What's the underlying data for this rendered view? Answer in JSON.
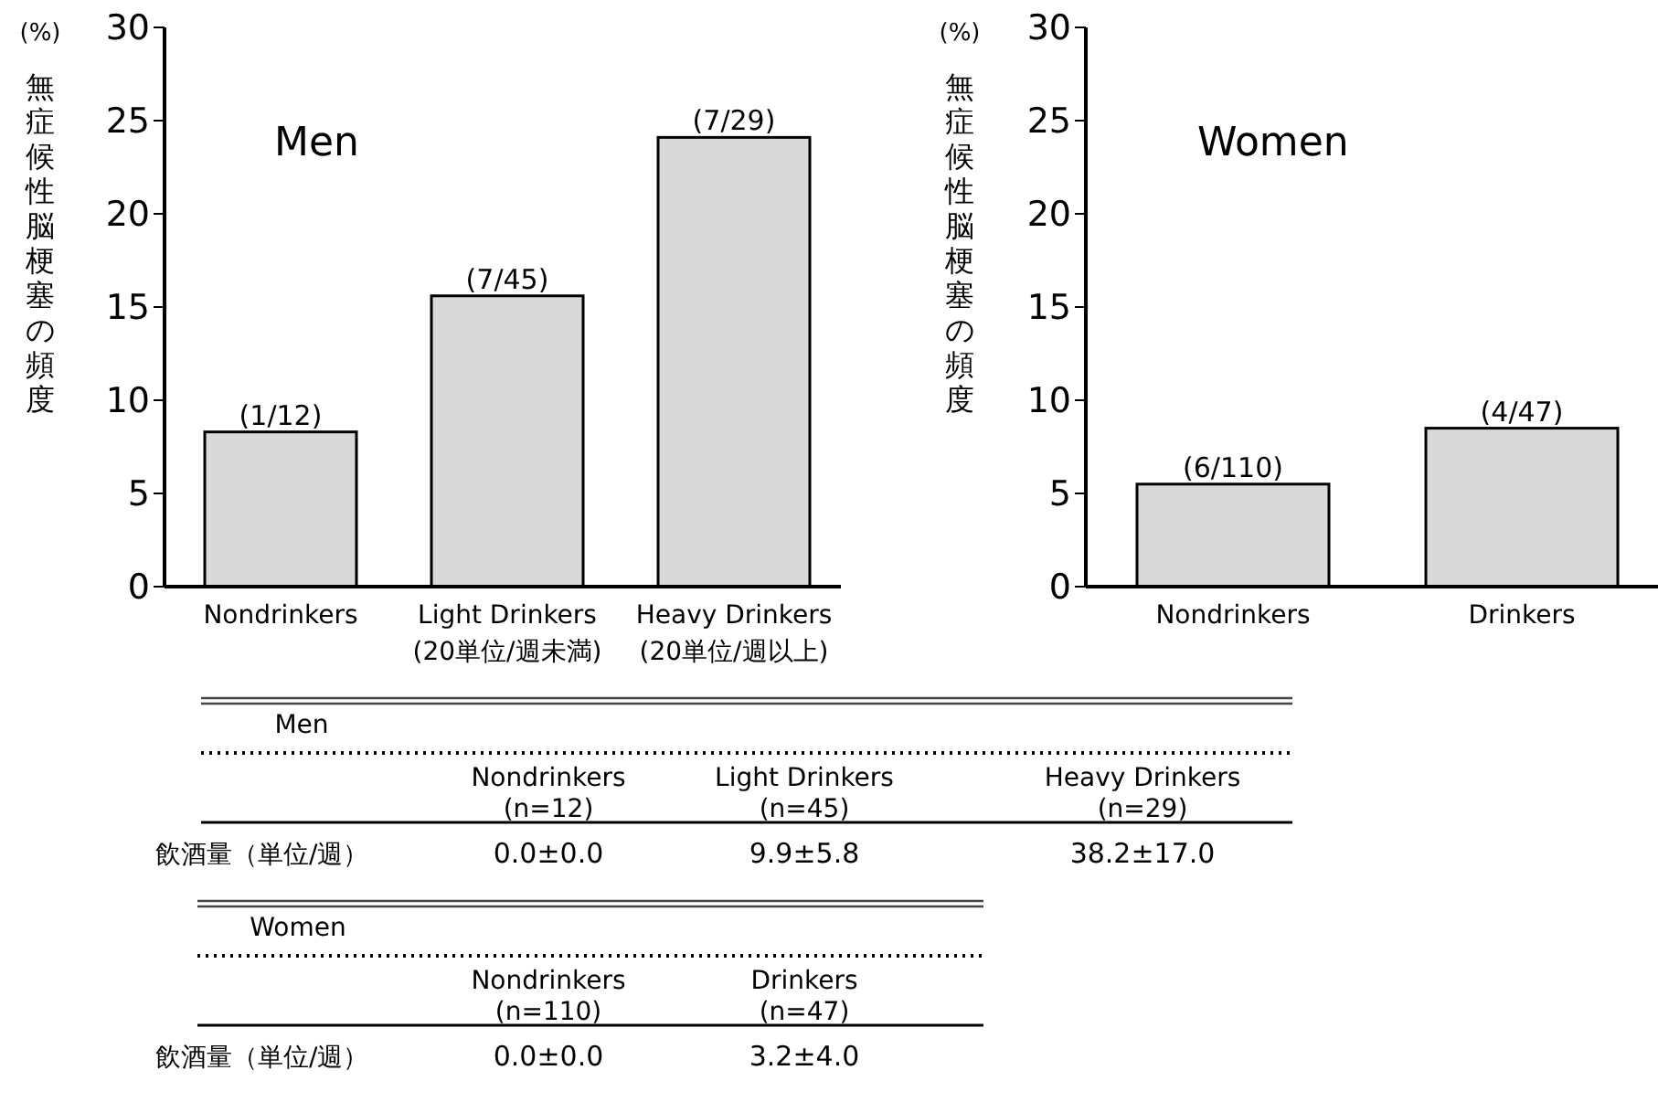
{
  "chart_data": [
    {
      "type": "bar",
      "title": "Men",
      "ylabel": "無症候性脳梗塞の頻度",
      "annotations": [
        "(%)"
      ],
      "categories": [
        "Nondrinkers",
        "Light Drinkers\n(20単位/週未満)",
        "Heavy Drinkers\n(20単位/週以上)"
      ],
      "values": [
        8.3,
        15.6,
        24.1
      ],
      "value_labels": [
        "(1/12)",
        "(7/45)",
        "(7/29)"
      ],
      "color": "#d9d9d9",
      "ylim": [
        0,
        30
      ],
      "yticks": [
        0,
        5,
        10,
        15,
        20,
        25,
        30
      ],
      "grid": false
    },
    {
      "type": "bar",
      "title": "Women",
      "ylabel": "無症候性脳梗塞の頻度",
      "annotations": [
        "(%)"
      ],
      "categories": [
        "Nondrinkers",
        "Drinkers"
      ],
      "values": [
        5.5,
        8.5
      ],
      "value_labels": [
        "(6/110)",
        "(4/47)"
      ],
      "color": "#d9d9d9",
      "ylim": [
        0,
        30
      ],
      "yticks": [
        0,
        5,
        10,
        15,
        20,
        25,
        30
      ],
      "grid": false
    },
    {
      "type": "other",
      "title": "Men",
      "annotations": [
        "Nondrinkers\n(n=12)",
        "Light Drinkers\n(n=45)",
        "Heavy Drinkers\n(n=29)",
        "飲酒量（単位/週）",
        "0.0±0.0",
        "9.9±5.8",
        "38.2±17.0"
      ]
    },
    {
      "type": "other",
      "title": "Women",
      "annotations": [
        "Nondrinkers\n(n=110)",
        "Drinkers\n(n=47)",
        "飲酒量（単位/週）",
        "0.0±0.0",
        "3.2±4.0"
      ]
    }
  ]
}
